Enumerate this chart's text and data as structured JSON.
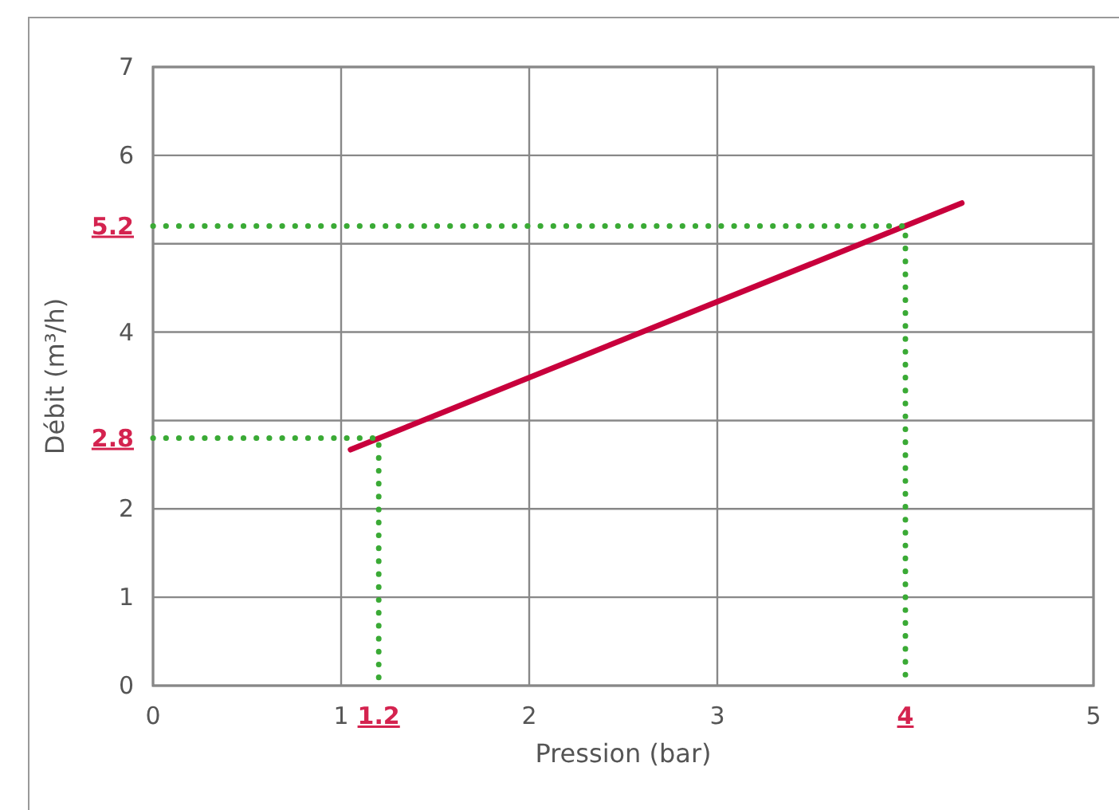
{
  "chart_data": {
    "type": "line",
    "xlabel": "Pression (bar)",
    "ylabel": "Débit (m³/h)",
    "xlim": [
      0,
      5
    ],
    "ylim": [
      0,
      7
    ],
    "xticks": [
      0,
      1,
      {
        "value": 1.2,
        "label": "1.2"
      },
      2,
      3,
      {
        "value": 4,
        "label": "4"
      },
      5
    ],
    "yticks": [
      0,
      1,
      2,
      {
        "value": 2.8,
        "label": "2.8"
      },
      {
        "value": 3,
        "label": null
      },
      4,
      {
        "value": 5,
        "label": null
      },
      {
        "value": 5.2,
        "label": "5.2"
      },
      6,
      7
    ],
    "grid": true,
    "series": [
      {
        "color": "#c8003c",
        "x": [
          1.05,
          4.3
        ],
        "values": [
          2.67,
          5.46
        ]
      },
      {
        "color": "#3aaa35",
        "line_style": "dotted",
        "x": [
          0,
          1.2,
          1.2
        ],
        "values": [
          2.8,
          2.8,
          0
        ]
      },
      {
        "color": "#3aaa35",
        "line_style": "dotted",
        "x": [
          0,
          4,
          4
        ],
        "values": [
          5.2,
          5.2,
          0
        ]
      }
    ]
  }
}
